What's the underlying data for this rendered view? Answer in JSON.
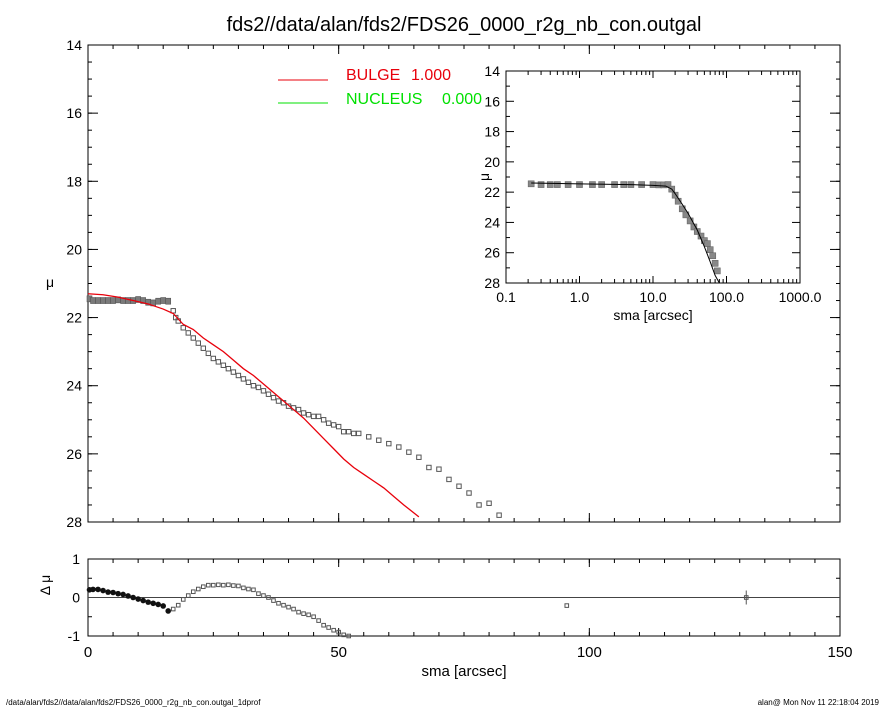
{
  "title": "fds2//data/alan/fds2/FDS26_0000_r2g_nb_con.outgal",
  "footer_left": "/data/alan/fds2//data/alan/fds2/FDS26_0000_r2g_nb_con.outgal_1dprof",
  "footer_right": "alan@  Mon Nov 11 22:18:04 2019",
  "colors": {
    "bulge": "#e8000b",
    "nucleus": "#00e000",
    "data": "#555555",
    "axes": "#000000"
  },
  "chart_data": [
    {
      "type": "scatter",
      "name": "main",
      "xlabel": "sma [arcsec]",
      "ylabel": "μ",
      "xlim": [
        0,
        150
      ],
      "ylim": [
        28,
        14
      ],
      "xticks": [
        0,
        50,
        100,
        150
      ],
      "yticks": [
        14,
        16,
        18,
        20,
        22,
        24,
        26,
        28
      ],
      "legend": [
        {
          "label": "BULGE",
          "value": "1.000",
          "color": "#e8000b"
        },
        {
          "label": "NUCLEUS",
          "value": "0.000",
          "color": "#00e000"
        }
      ],
      "series": [
        {
          "mode": "points",
          "x": [
            0.3,
            1,
            2,
            3,
            4,
            5,
            6,
            7,
            8,
            9,
            10,
            11,
            12,
            13,
            14,
            15,
            16,
            17,
            17.5,
            18,
            19,
            20,
            21,
            22,
            23,
            24,
            25,
            26,
            27,
            28,
            29,
            30,
            31,
            32,
            33,
            34,
            35,
            36,
            37,
            38,
            39,
            40,
            41,
            42,
            43,
            44,
            45,
            46,
            47,
            48,
            49,
            50,
            51,
            52,
            53,
            54,
            56,
            58,
            60,
            62,
            64,
            66,
            68,
            70,
            72,
            74,
            76,
            78,
            80,
            82
          ],
          "y": [
            21.45,
            21.5,
            21.5,
            21.5,
            21.5,
            21.5,
            21.48,
            21.5,
            21.5,
            21.5,
            21.47,
            21.5,
            21.55,
            21.57,
            21.52,
            21.5,
            21.52,
            21.8,
            22.0,
            22.1,
            22.3,
            22.45,
            22.6,
            22.75,
            22.9,
            23.05,
            23.2,
            23.3,
            23.4,
            23.5,
            23.6,
            23.7,
            23.8,
            23.9,
            24.0,
            24.05,
            24.15,
            24.25,
            24.35,
            24.45,
            24.5,
            24.6,
            24.65,
            24.7,
            24.8,
            24.85,
            24.9,
            24.9,
            25.0,
            25.1,
            25.15,
            25.2,
            25.35,
            25.35,
            25.4,
            25.4,
            25.5,
            25.6,
            25.7,
            25.8,
            25.95,
            26.1,
            26.4,
            26.45,
            26.75,
            26.95,
            27.15,
            27.5,
            27.45,
            27.8
          ]
        },
        {
          "mode": "line",
          "name": "BULGE",
          "color": "#e8000b",
          "x": [
            0,
            3,
            6,
            9,
            12,
            15,
            17,
            19,
            21,
            23,
            25,
            27,
            29,
            31,
            33,
            35,
            37,
            39,
            41,
            43,
            45,
            47,
            49,
            51,
            53,
            55,
            57,
            59,
            61,
            63,
            66
          ],
          "y": [
            21.3,
            21.33,
            21.4,
            21.5,
            21.6,
            21.75,
            21.88,
            22.2,
            22.35,
            22.6,
            22.8,
            23.0,
            23.25,
            23.5,
            23.7,
            23.95,
            24.2,
            24.45,
            24.7,
            24.95,
            25.25,
            25.55,
            25.85,
            26.15,
            26.4,
            26.6,
            26.8,
            27.0,
            27.25,
            27.5,
            27.85
          ]
        }
      ]
    },
    {
      "type": "scatter",
      "name": "residual",
      "xlabel": "sma [arcsec]",
      "ylabel": "Δ μ",
      "xlim": [
        0,
        150
      ],
      "ylim": [
        -1,
        1
      ],
      "yticks": [
        -1,
        0,
        1
      ],
      "series": [
        {
          "mode": "points",
          "x": [
            0.3,
            1,
            2,
            3,
            4,
            5,
            6,
            7,
            8,
            9,
            10,
            11,
            12,
            13,
            14,
            15,
            16,
            17,
            18,
            19,
            20,
            21,
            22,
            23,
            24,
            25,
            26,
            27,
            28,
            29,
            30,
            31,
            32,
            33,
            34,
            35,
            36,
            37,
            38,
            39,
            40,
            41,
            42,
            43,
            44,
            45,
            46,
            47,
            48,
            49,
            50,
            51,
            52,
            95.5,
            131.3
          ],
          "y": [
            0.2,
            0.21,
            0.21,
            0.18,
            0.14,
            0.13,
            0.1,
            0.08,
            0.04,
            0.0,
            -0.04,
            -0.08,
            -0.12,
            -0.15,
            -0.18,
            -0.22,
            -0.35,
            -0.3,
            -0.2,
            -0.05,
            0.05,
            0.15,
            0.22,
            0.28,
            0.32,
            0.32,
            0.33,
            0.32,
            0.33,
            0.31,
            0.3,
            0.25,
            0.22,
            0.2,
            0.1,
            0.05,
            0.0,
            -0.08,
            -0.15,
            -0.2,
            -0.25,
            -0.3,
            -0.38,
            -0.42,
            -0.45,
            -0.5,
            -0.6,
            -0.72,
            -0.78,
            -0.85,
            -0.9,
            -0.97,
            -1.0,
            -0.21,
            0.0
          ]
        }
      ]
    },
    {
      "type": "scatter",
      "name": "inset",
      "xlabel": "sma [arcsec]",
      "ylabel": "μ",
      "xscale": "log",
      "xlim": [
        0.1,
        1000
      ],
      "ylim": [
        28,
        14
      ],
      "xticklabels": [
        "0.1",
        "1.0",
        "10.0",
        "100.0",
        "1000.0"
      ],
      "yticks": [
        14,
        16,
        18,
        20,
        22,
        24,
        26,
        28
      ],
      "series": [
        {
          "mode": "points",
          "x": [
            0.22,
            0.3,
            0.4,
            0.5,
            0.7,
            1,
            1.5,
            2,
            3,
            4,
            5,
            7,
            10,
            12,
            14,
            16,
            18,
            20,
            22,
            25,
            28,
            32,
            36,
            40,
            45,
            50,
            55,
            60,
            65,
            70,
            75
          ],
          "y": [
            21.45,
            21.5,
            21.5,
            21.5,
            21.5,
            21.5,
            21.5,
            21.5,
            21.5,
            21.5,
            21.5,
            21.5,
            21.5,
            21.52,
            21.52,
            21.5,
            21.8,
            22.2,
            22.6,
            23.1,
            23.5,
            23.9,
            24.3,
            24.6,
            24.9,
            25.2,
            25.4,
            25.8,
            26.2,
            26.7,
            27.2
          ]
        },
        {
          "mode": "line",
          "color": "#000000",
          "x": [
            0.22,
            1,
            5,
            10,
            15,
            18,
            20,
            25,
            30,
            40,
            50,
            60,
            70,
            80
          ],
          "y": [
            21.4,
            21.45,
            21.5,
            21.55,
            21.6,
            21.8,
            22.1,
            22.8,
            23.4,
            24.5,
            25.6,
            26.6,
            27.5,
            28.0
          ]
        }
      ]
    }
  ]
}
